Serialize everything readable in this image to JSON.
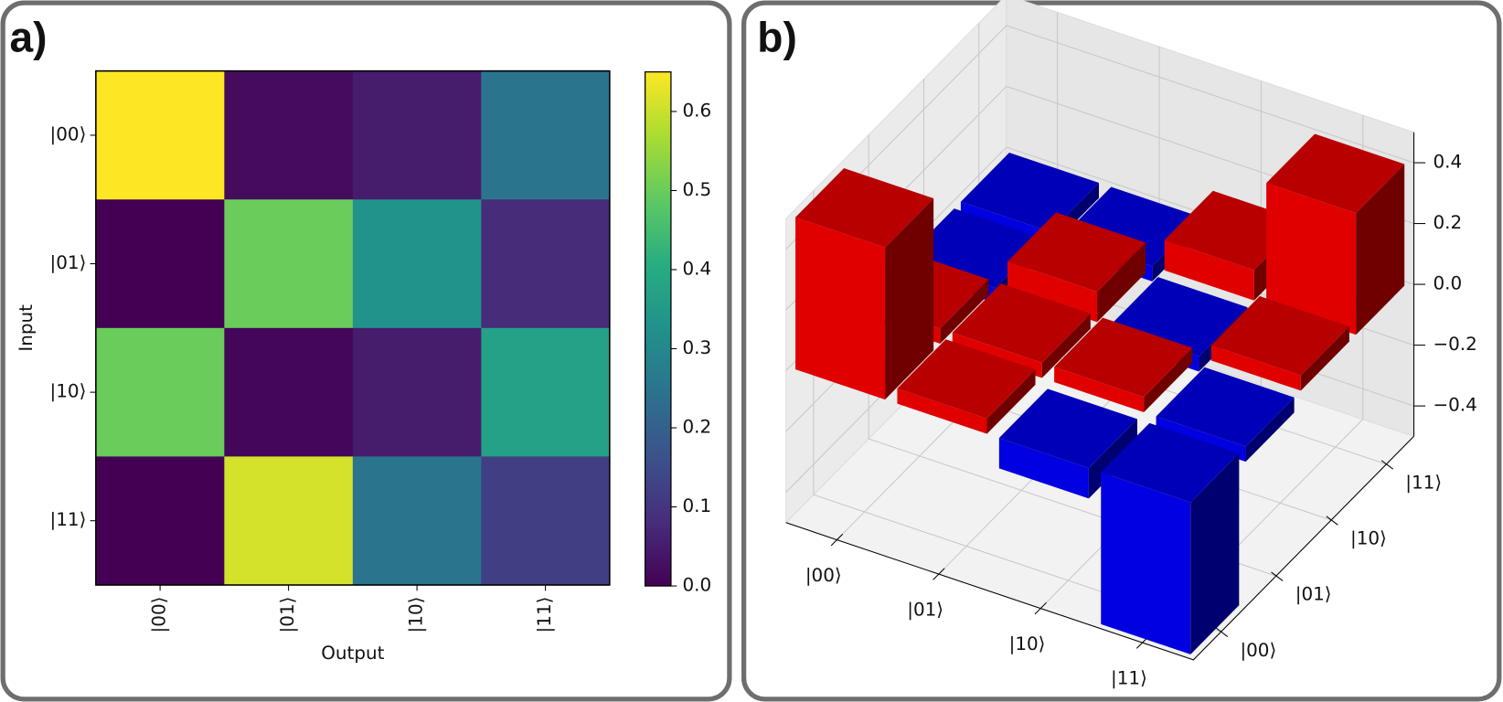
{
  "chart_data": [
    {
      "type": "heatmap",
      "panel_label": "a)",
      "xlabel": "Output",
      "ylabel": "Input",
      "x_categories": [
        "|00⟩",
        "|01⟩",
        "|10⟩",
        "|11⟩"
      ],
      "y_categories": [
        "|00⟩",
        "|01⟩",
        "|10⟩",
        "|11⟩"
      ],
      "values": [
        [
          0.65,
          0.02,
          0.05,
          0.25
        ],
        [
          0.0,
          0.5,
          0.33,
          0.08
        ],
        [
          0.5,
          0.01,
          0.05,
          0.37
        ],
        [
          0.0,
          0.61,
          0.25,
          0.12
        ]
      ],
      "colormap": "viridis",
      "clim": [
        0,
        0.65
      ],
      "colorbar_ticks": [
        {
          "value": 0,
          "label": "0.0"
        },
        0.1,
        0.2,
        0.3,
        0.4,
        0.5,
        0.6
      ]
    },
    {
      "type": "bar3d",
      "panel_label": "b)",
      "x_categories": [
        "|00⟩",
        "|01⟩",
        "|10⟩",
        "|11⟩"
      ],
      "y_categories": [
        "|00⟩",
        "|01⟩",
        "|10⟩",
        "|11⟩"
      ],
      "values": [
        [
          0.5,
          0.05,
          -0.1,
          -0.5
        ],
        [
          0.05,
          0.05,
          0.05,
          -0.05
        ],
        [
          -0.05,
          0.1,
          -0.05,
          0.05
        ],
        [
          -0.05,
          -0.05,
          0.1,
          0.4
        ]
      ],
      "positive_color": "#e00000",
      "negative_color": "#0000e0",
      "zlim": [
        -0.5,
        0.5
      ],
      "zticks": [
        {
          "value": -0.4,
          "label": "−0.4"
        },
        {
          "value": -0.2,
          "label": "−0.2"
        },
        {
          "value": 0,
          "label": "0.0"
        },
        0.2,
        0.4
      ]
    }
  ]
}
